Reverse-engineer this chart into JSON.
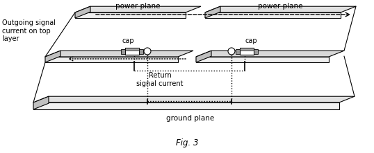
{
  "bg_color": "#ffffff",
  "line_color": "#000000",
  "fig_width": 5.38,
  "fig_height": 2.21,
  "dpi": 100,
  "labels": {
    "outgoing": "Outgoing signal\ncurrent on top\nlayer",
    "return": "Return\nsignal current",
    "cap1": "cap",
    "cap2": "cap",
    "power_plane_left": "power plane",
    "power_plane_right": "power plane",
    "ground_plane": "ground plane",
    "fig": "Fig. 3"
  },
  "layer_gray": "#d8d8d8",
  "layer_edge": "#000000",
  "cap_body": "#ffffff",
  "cap_pad": "#888888"
}
